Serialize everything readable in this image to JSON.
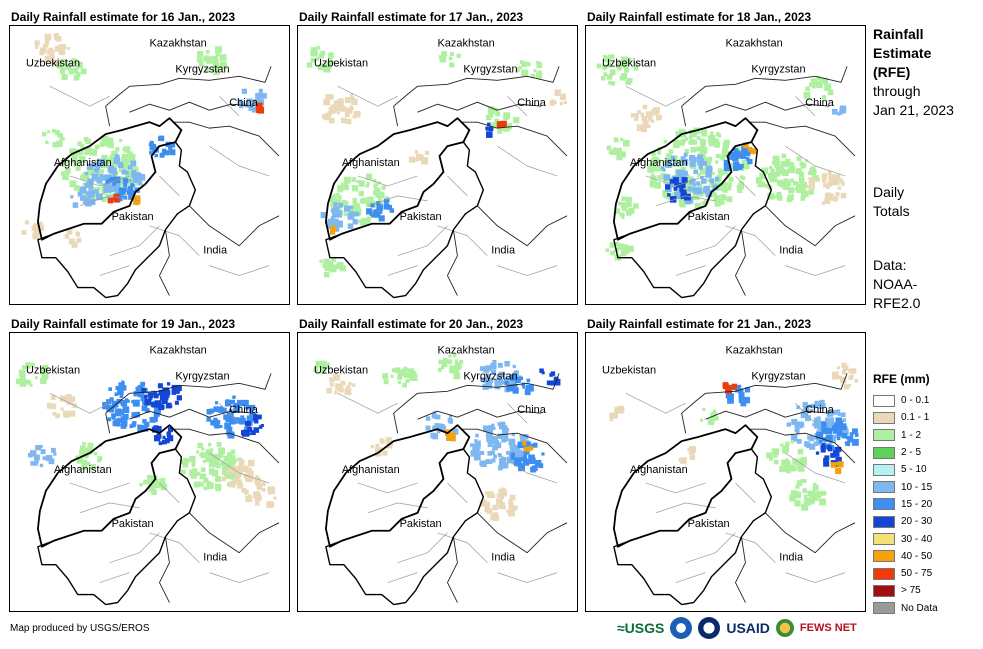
{
  "panels": [
    {
      "title": "Daily Rainfall estimate for 16 Jan., 2023",
      "rain": "p16"
    },
    {
      "title": "Daily Rainfall estimate for 17 Jan., 2023",
      "rain": "p17"
    },
    {
      "title": "Daily Rainfall estimate for 18 Jan., 2023",
      "rain": "p18"
    },
    {
      "title": "Daily Rainfall estimate for 19 Jan., 2023",
      "rain": "p19"
    },
    {
      "title": "Daily Rainfall estimate for 20 Jan., 2023",
      "rain": "p20"
    },
    {
      "title": "Daily Rainfall estimate for 21 Jan., 2023",
      "rain": "p21"
    }
  ],
  "places": {
    "kazakhstan": "Kazakhstan",
    "uzbekistan": "Uzbekistan",
    "kyrgyzstan": "Kyrgyzstan",
    "china": "China",
    "afghanistan": "Afghanistan",
    "pakistan": "Pakistan",
    "india": "India"
  },
  "sidebar": {
    "title_line1": "Rainfall",
    "title_line2": "Estimate",
    "title_line3": "(RFE)",
    "through": "through",
    "date": "Jan 21, 2023",
    "daily1": "Daily",
    "daily2": "Totals",
    "data1": "Data:",
    "data2": "NOAA-",
    "data3": "RFE2.0"
  },
  "legend": {
    "title": "RFE (mm)",
    "items": [
      {
        "label": "0 - 0.1",
        "color": "#ffffff"
      },
      {
        "label": "0.1 - 1",
        "color": "#ead9b8"
      },
      {
        "label": "1 - 2",
        "color": "#aef0a0"
      },
      {
        "label": "2 - 5",
        "color": "#5dd35d"
      },
      {
        "label": "5 - 10",
        "color": "#b5f0f5"
      },
      {
        "label": "10 - 15",
        "color": "#7fb8f0"
      },
      {
        "label": "15 - 20",
        "color": "#3d8ef0"
      },
      {
        "label": "20 - 30",
        "color": "#1446d6"
      },
      {
        "label": "30 - 40",
        "color": "#f7df78"
      },
      {
        "label": "40 - 50",
        "color": "#f5a20f"
      },
      {
        "label": "50 - 75",
        "color": "#f03a0a"
      },
      {
        "label": "> 75",
        "color": "#a01010"
      },
      {
        "label": "No Data",
        "color": "#999999"
      }
    ]
  },
  "footer": {
    "credit": "Map produced by USGS/EROS",
    "usgs": "≈USGS",
    "usaid": "USAID",
    "fews": "FEWS NET"
  }
}
